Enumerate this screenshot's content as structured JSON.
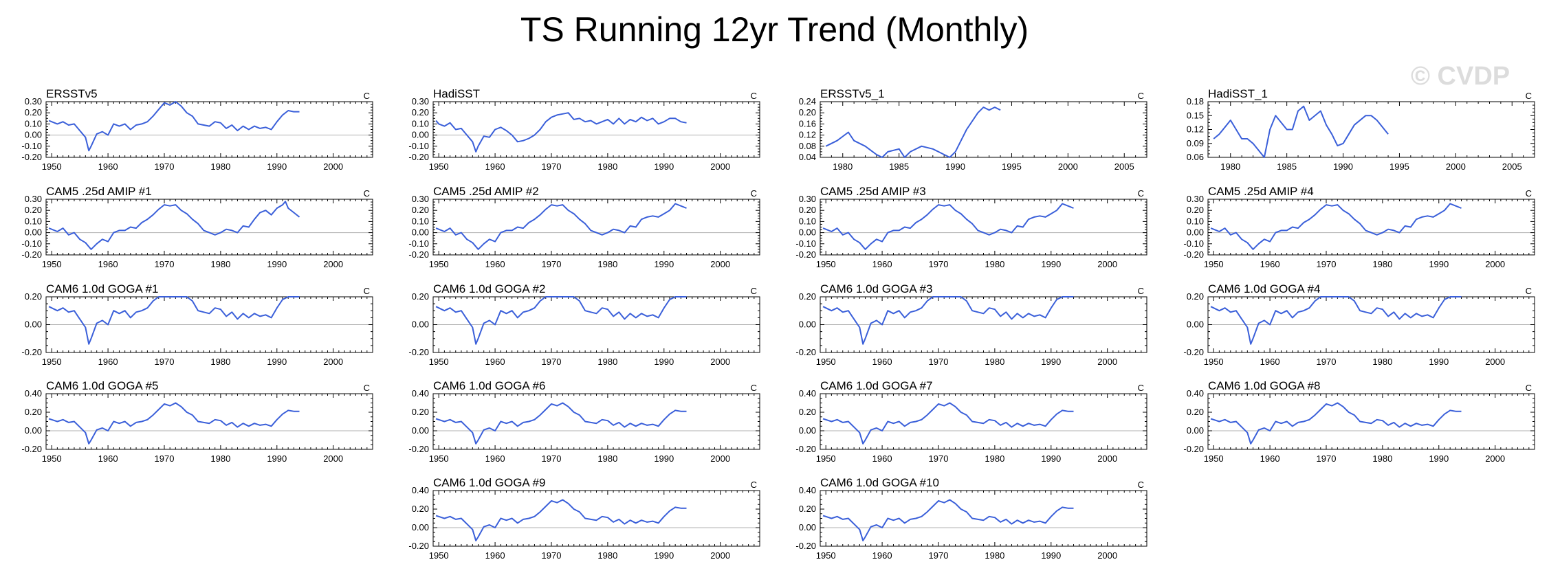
{
  "figure": {
    "title": "TS Running 12yr Trend (Monthly)",
    "watermark": "© CVDP",
    "colors": {
      "line": "#3a5fd9",
      "zero_line": "#b0b0b0",
      "axis": "#000000"
    }
  },
  "chart_data": [
    {
      "type": "line",
      "title": "ERSSTv5",
      "units": "C",
      "xlim": [
        1949,
        2007
      ],
      "ylim": [
        -0.2,
        0.3
      ],
      "xticks": [
        1950,
        1960,
        1970,
        1980,
        1990,
        2000
      ],
      "yticks": [
        -0.2,
        -0.1,
        0.0,
        0.1,
        0.2,
        0.3
      ],
      "ytick_labels": [
        "-0.20",
        "-0.10",
        "0.00",
        "0.10",
        "0.20",
        "0.30"
      ],
      "series_key": "obs_a"
    },
    {
      "type": "line",
      "title": "HadiSST",
      "units": "C",
      "xlim": [
        1949,
        2007
      ],
      "ylim": [
        -0.2,
        0.3
      ],
      "xticks": [
        1950,
        1960,
        1970,
        1980,
        1990,
        2000
      ],
      "yticks": [
        -0.2,
        -0.1,
        0.0,
        0.1,
        0.2,
        0.3
      ],
      "ytick_labels": [
        "-0.20",
        "-0.10",
        "0.00",
        "0.10",
        "0.20",
        "0.30"
      ],
      "series_key": "obs_b"
    },
    {
      "type": "line",
      "title": "ERSSTv5_1",
      "units": "C",
      "xlim": [
        1978,
        2007
      ],
      "ylim": [
        0.04,
        0.24
      ],
      "xticks": [
        1980,
        1985,
        1990,
        1995,
        2000,
        2005
      ],
      "yticks": [
        0.04,
        0.08,
        0.12,
        0.16,
        0.2,
        0.24
      ],
      "ytick_labels": [
        "0.04",
        "0.08",
        "0.12",
        "0.16",
        "0.20",
        "0.24"
      ],
      "series_key": "obs_c"
    },
    {
      "type": "line",
      "title": "HadiSST_1",
      "units": "C",
      "xlim": [
        1978,
        2007
      ],
      "ylim": [
        0.06,
        0.18
      ],
      "xticks": [
        1980,
        1985,
        1990,
        1995,
        2000,
        2005
      ],
      "yticks": [
        0.06,
        0.09,
        0.12,
        0.15,
        0.18
      ],
      "ytick_labels": [
        "0.06",
        "0.09",
        "0.12",
        "0.15",
        "0.18"
      ],
      "series_key": "obs_d"
    },
    {
      "type": "line",
      "title": "CAM5 .25d AMIP #1",
      "units": "C",
      "xlim": [
        1949,
        2007
      ],
      "ylim": [
        -0.2,
        0.3
      ],
      "xticks": [
        1950,
        1960,
        1970,
        1980,
        1990,
        2000
      ],
      "yticks": [
        -0.2,
        -0.1,
        0.0,
        0.1,
        0.2,
        0.3
      ],
      "ytick_labels": [
        "-0.20",
        "-0.10",
        "0.00",
        "0.10",
        "0.20",
        "0.30"
      ],
      "series_key": "amip1"
    },
    {
      "type": "line",
      "title": "CAM5 .25d AMIP #2",
      "units": "C",
      "xlim": [
        1949,
        2007
      ],
      "ylim": [
        -0.2,
        0.3
      ],
      "xticks": [
        1950,
        1960,
        1970,
        1980,
        1990,
        2000
      ],
      "yticks": [
        -0.2,
        -0.1,
        0.0,
        0.1,
        0.2,
        0.3
      ],
      "ytick_labels": [
        "-0.20",
        "-0.10",
        "0.00",
        "0.10",
        "0.20",
        "0.30"
      ],
      "series_key": "amip"
    },
    {
      "type": "line",
      "title": "CAM5 .25d AMIP #3",
      "units": "C",
      "xlim": [
        1949,
        2007
      ],
      "ylim": [
        -0.2,
        0.3
      ],
      "xticks": [
        1950,
        1960,
        1970,
        1980,
        1990,
        2000
      ],
      "yticks": [
        -0.2,
        -0.1,
        0.0,
        0.1,
        0.2,
        0.3
      ],
      "ytick_labels": [
        "-0.20",
        "-0.10",
        "0.00",
        "0.10",
        "0.20",
        "0.30"
      ],
      "series_key": "amip"
    },
    {
      "type": "line",
      "title": "CAM5 .25d AMIP #4",
      "units": "C",
      "xlim": [
        1949,
        2007
      ],
      "ylim": [
        -0.2,
        0.3
      ],
      "xticks": [
        1950,
        1960,
        1970,
        1980,
        1990,
        2000
      ],
      "yticks": [
        -0.2,
        -0.1,
        0.0,
        0.1,
        0.2,
        0.3
      ],
      "ytick_labels": [
        "-0.20",
        "-0.10",
        "0.00",
        "0.10",
        "0.20",
        "0.30"
      ],
      "series_key": "amip"
    },
    {
      "type": "line",
      "title": "CAM6 1.0d GOGA #1",
      "units": "C",
      "xlim": [
        1949,
        2007
      ],
      "ylim": [
        -0.2,
        0.2
      ],
      "xticks": [
        1950,
        1960,
        1970,
        1980,
        1990,
        2000
      ],
      "yticks": [
        -0.2,
        0.0,
        0.2
      ],
      "ytick_labels": [
        "-0.20",
        "0.00",
        "0.20"
      ],
      "series_key": "goga"
    },
    {
      "type": "line",
      "title": "CAM6 1.0d GOGA #2",
      "units": "C",
      "xlim": [
        1949,
        2007
      ],
      "ylim": [
        -0.2,
        0.2
      ],
      "xticks": [
        1950,
        1960,
        1970,
        1980,
        1990,
        2000
      ],
      "yticks": [
        -0.2,
        0.0,
        0.2
      ],
      "ytick_labels": [
        "-0.20",
        "0.00",
        "0.20"
      ],
      "series_key": "goga"
    },
    {
      "type": "line",
      "title": "CAM6 1.0d GOGA #3",
      "units": "C",
      "xlim": [
        1949,
        2007
      ],
      "ylim": [
        -0.2,
        0.2
      ],
      "xticks": [
        1950,
        1960,
        1970,
        1980,
        1990,
        2000
      ],
      "yticks": [
        -0.2,
        0.0,
        0.2
      ],
      "ytick_labels": [
        "-0.20",
        "0.00",
        "0.20"
      ],
      "series_key": "goga"
    },
    {
      "type": "line",
      "title": "CAM6 1.0d GOGA #4",
      "units": "C",
      "xlim": [
        1949,
        2007
      ],
      "ylim": [
        -0.2,
        0.2
      ],
      "xticks": [
        1950,
        1960,
        1970,
        1980,
        1990,
        2000
      ],
      "yticks": [
        -0.2,
        0.0,
        0.2
      ],
      "ytick_labels": [
        "-0.20",
        "0.00",
        "0.20"
      ],
      "series_key": "goga"
    },
    {
      "type": "line",
      "title": "CAM6 1.0d GOGA #5",
      "units": "C",
      "xlim": [
        1949,
        2007
      ],
      "ylim": [
        -0.2,
        0.4
      ],
      "xticks": [
        1950,
        1960,
        1970,
        1980,
        1990,
        2000
      ],
      "yticks": [
        -0.2,
        0.0,
        0.2,
        0.4
      ],
      "ytick_labels": [
        "-0.20",
        "0.00",
        "0.20",
        "0.40"
      ],
      "series_key": "goga"
    },
    {
      "type": "line",
      "title": "CAM6 1.0d GOGA #6",
      "units": "C",
      "xlim": [
        1949,
        2007
      ],
      "ylim": [
        -0.2,
        0.4
      ],
      "xticks": [
        1950,
        1960,
        1970,
        1980,
        1990,
        2000
      ],
      "yticks": [
        -0.2,
        0.0,
        0.2,
        0.4
      ],
      "ytick_labels": [
        "-0.20",
        "0.00",
        "0.20",
        "0.40"
      ],
      "series_key": "goga"
    },
    {
      "type": "line",
      "title": "CAM6 1.0d GOGA #7",
      "units": "C",
      "xlim": [
        1949,
        2007
      ],
      "ylim": [
        -0.2,
        0.4
      ],
      "xticks": [
        1950,
        1960,
        1970,
        1980,
        1990,
        2000
      ],
      "yticks": [
        -0.2,
        0.0,
        0.2,
        0.4
      ],
      "ytick_labels": [
        "-0.20",
        "0.00",
        "0.20",
        "0.40"
      ],
      "series_key": "goga"
    },
    {
      "type": "line",
      "title": "CAM6 1.0d GOGA #8",
      "units": "C",
      "xlim": [
        1949,
        2007
      ],
      "ylim": [
        -0.2,
        0.4
      ],
      "xticks": [
        1950,
        1960,
        1970,
        1980,
        1990,
        2000
      ],
      "yticks": [
        -0.2,
        0.0,
        0.2,
        0.4
      ],
      "ytick_labels": [
        "-0.20",
        "0.00",
        "0.20",
        "0.40"
      ],
      "series_key": "goga"
    },
    {
      "type": "line",
      "title": "CAM6 1.0d GOGA #9",
      "units": "C",
      "xlim": [
        1949,
        2007
      ],
      "ylim": [
        -0.2,
        0.4
      ],
      "xticks": [
        1950,
        1960,
        1970,
        1980,
        1990,
        2000
      ],
      "yticks": [
        -0.2,
        0.0,
        0.2,
        0.4
      ],
      "ytick_labels": [
        "-0.20",
        "0.00",
        "0.20",
        "0.40"
      ],
      "series_key": "goga"
    },
    {
      "type": "line",
      "title": "CAM6 1.0d GOGA #10",
      "units": "C",
      "xlim": [
        1949,
        2007
      ],
      "ylim": [
        -0.2,
        0.4
      ],
      "xticks": [
        1950,
        1960,
        1970,
        1980,
        1990,
        2000
      ],
      "yticks": [
        -0.2,
        0.0,
        0.2,
        0.4
      ],
      "ytick_labels": [
        "-0.20",
        "0.00",
        "0.20",
        "0.40"
      ],
      "series_key": "goga"
    }
  ],
  "series": {
    "obs_a": {
      "x": [
        1949.5,
        1950,
        1951,
        1952,
        1953,
        1954,
        1955,
        1956,
        1956.6,
        1957,
        1958,
        1959,
        1960,
        1961,
        1962,
        1963,
        1964,
        1965,
        1966,
        1967,
        1968,
        1969,
        1970,
        1971,
        1972,
        1973,
        1974,
        1975,
        1976,
        1977,
        1978,
        1979,
        1980,
        1981,
        1982,
        1983,
        1984,
        1985,
        1986,
        1987,
        1988,
        1989,
        1990,
        1991,
        1992,
        1993,
        1994
      ],
      "y": [
        0.13,
        0.12,
        0.1,
        0.12,
        0.09,
        0.1,
        0.04,
        -0.02,
        -0.14,
        -0.1,
        0.01,
        0.03,
        0.0,
        0.1,
        0.08,
        0.1,
        0.05,
        0.09,
        0.1,
        0.12,
        0.17,
        0.23,
        0.29,
        0.27,
        0.3,
        0.26,
        0.2,
        0.17,
        0.1,
        0.09,
        0.08,
        0.12,
        0.11,
        0.06,
        0.09,
        0.04,
        0.08,
        0.05,
        0.08,
        0.06,
        0.07,
        0.05,
        0.12,
        0.18,
        0.22,
        0.21,
        0.21
      ]
    },
    "obs_b": {
      "x": [
        1949.5,
        1950,
        1951,
        1952,
        1953,
        1954,
        1955,
        1956,
        1956.6,
        1957,
        1958,
        1959,
        1960,
        1961,
        1962,
        1963,
        1964,
        1965,
        1966,
        1967,
        1968,
        1969,
        1970,
        1971,
        1972,
        1973,
        1974,
        1975,
        1976,
        1977,
        1978,
        1979,
        1980,
        1981,
        1982,
        1983,
        1984,
        1985,
        1986,
        1987,
        1988,
        1989,
        1990,
        1991,
        1992,
        1993,
        1994
      ],
      "y": [
        0.13,
        0.1,
        0.08,
        0.11,
        0.05,
        0.06,
        0.0,
        -0.06,
        -0.15,
        -0.1,
        -0.01,
        -0.02,
        0.05,
        0.07,
        0.04,
        0.0,
        -0.06,
        -0.05,
        -0.03,
        0.0,
        0.05,
        0.12,
        0.16,
        0.18,
        0.19,
        0.2,
        0.14,
        0.15,
        0.12,
        0.13,
        0.1,
        0.12,
        0.14,
        0.1,
        0.15,
        0.1,
        0.14,
        0.12,
        0.16,
        0.13,
        0.15,
        0.1,
        0.12,
        0.15,
        0.15,
        0.12,
        0.11
      ]
    },
    "obs_c": {
      "x": [
        1978.5,
        1979.5,
        1980.5,
        1981,
        1982,
        1983,
        1983.5,
        1984,
        1985,
        1985.5,
        1986,
        1987,
        1988,
        1988.5,
        1989,
        1989.5,
        1990,
        1991,
        1992,
        1992.5,
        1993,
        1993.5,
        1994
      ],
      "y": [
        0.08,
        0.1,
        0.13,
        0.1,
        0.08,
        0.05,
        0.04,
        0.06,
        0.07,
        0.04,
        0.06,
        0.08,
        0.07,
        0.06,
        0.05,
        0.04,
        0.06,
        0.14,
        0.2,
        0.22,
        0.21,
        0.22,
        0.21
      ]
    },
    "obs_d": {
      "x": [
        1978.5,
        1979,
        1980,
        1981,
        1981.5,
        1982,
        1983,
        1983.5,
        1984,
        1985,
        1985.5,
        1986,
        1986.5,
        1987,
        1988,
        1988.5,
        1989,
        1989.5,
        1990,
        1991,
        1992,
        1992.5,
        1993,
        1994
      ],
      "y": [
        0.1,
        0.11,
        0.14,
        0.1,
        0.1,
        0.09,
        0.06,
        0.12,
        0.15,
        0.12,
        0.12,
        0.16,
        0.17,
        0.14,
        0.16,
        0.13,
        0.11,
        0.085,
        0.09,
        0.13,
        0.15,
        0.15,
        0.14,
        0.11
      ]
    },
    "amip1": {
      "x": [
        1949.5,
        1950,
        1951,
        1952,
        1953,
        1954,
        1955,
        1956,
        1957,
        1958,
        1959,
        1960,
        1961,
        1962,
        1963,
        1964,
        1965,
        1966,
        1967,
        1968,
        1969,
        1970,
        1971,
        1972,
        1973,
        1974,
        1975,
        1976,
        1977,
        1978,
        1979,
        1980,
        1981,
        1982,
        1983,
        1984,
        1985,
        1986,
        1987,
        1988,
        1989,
        1990,
        1991,
        1991.5,
        1992,
        1993,
        1994
      ],
      "y": [
        0.04,
        0.03,
        0.01,
        0.04,
        -0.02,
        0.0,
        -0.06,
        -0.09,
        -0.15,
        -0.1,
        -0.06,
        -0.08,
        0.0,
        0.02,
        0.02,
        0.05,
        0.04,
        0.09,
        0.12,
        0.16,
        0.21,
        0.25,
        0.24,
        0.25,
        0.2,
        0.17,
        0.12,
        0.08,
        0.02,
        0.0,
        -0.02,
        0.0,
        0.03,
        0.02,
        0.0,
        0.06,
        0.05,
        0.12,
        0.18,
        0.2,
        0.16,
        0.22,
        0.25,
        0.28,
        0.22,
        0.18,
        0.14
      ]
    },
    "amip": {
      "x": [
        1949.5,
        1950,
        1951,
        1952,
        1953,
        1954,
        1955,
        1956,
        1957,
        1958,
        1959,
        1960,
        1961,
        1962,
        1963,
        1964,
        1965,
        1966,
        1967,
        1968,
        1969,
        1970,
        1971,
        1972,
        1973,
        1974,
        1975,
        1976,
        1977,
        1978,
        1979,
        1980,
        1981,
        1982,
        1983,
        1984,
        1985,
        1986,
        1987,
        1988,
        1989,
        1990,
        1991,
        1992,
        1993,
        1994
      ],
      "y": [
        0.04,
        0.03,
        0.01,
        0.04,
        -0.02,
        0.0,
        -0.06,
        -0.09,
        -0.15,
        -0.1,
        -0.06,
        -0.08,
        0.0,
        0.02,
        0.02,
        0.05,
        0.04,
        0.09,
        0.12,
        0.16,
        0.21,
        0.25,
        0.24,
        0.25,
        0.2,
        0.17,
        0.12,
        0.08,
        0.02,
        0.0,
        -0.02,
        0.0,
        0.03,
        0.02,
        0.0,
        0.06,
        0.05,
        0.12,
        0.14,
        0.15,
        0.14,
        0.17,
        0.2,
        0.26,
        0.24,
        0.22
      ]
    },
    "goga": {
      "x": [
        1949.5,
        1950,
        1951,
        1952,
        1953,
        1954,
        1955,
        1956,
        1956.6,
        1957,
        1958,
        1959,
        1960,
        1961,
        1962,
        1963,
        1964,
        1965,
        1966,
        1967,
        1968,
        1969,
        1970,
        1971,
        1972,
        1973,
        1974,
        1975,
        1976,
        1977,
        1978,
        1979,
        1980,
        1981,
        1982,
        1983,
        1984,
        1985,
        1986,
        1987,
        1988,
        1989,
        1990,
        1991,
        1992,
        1993,
        1994
      ],
      "y": [
        0.13,
        0.12,
        0.1,
        0.12,
        0.09,
        0.1,
        0.04,
        -0.02,
        -0.14,
        -0.1,
        0.01,
        0.03,
        0.0,
        0.1,
        0.08,
        0.1,
        0.05,
        0.09,
        0.1,
        0.12,
        0.17,
        0.23,
        0.29,
        0.27,
        0.3,
        0.26,
        0.2,
        0.17,
        0.1,
        0.09,
        0.08,
        0.12,
        0.11,
        0.06,
        0.09,
        0.04,
        0.08,
        0.05,
        0.08,
        0.06,
        0.07,
        0.05,
        0.12,
        0.18,
        0.22,
        0.21,
        0.21
      ]
    }
  }
}
